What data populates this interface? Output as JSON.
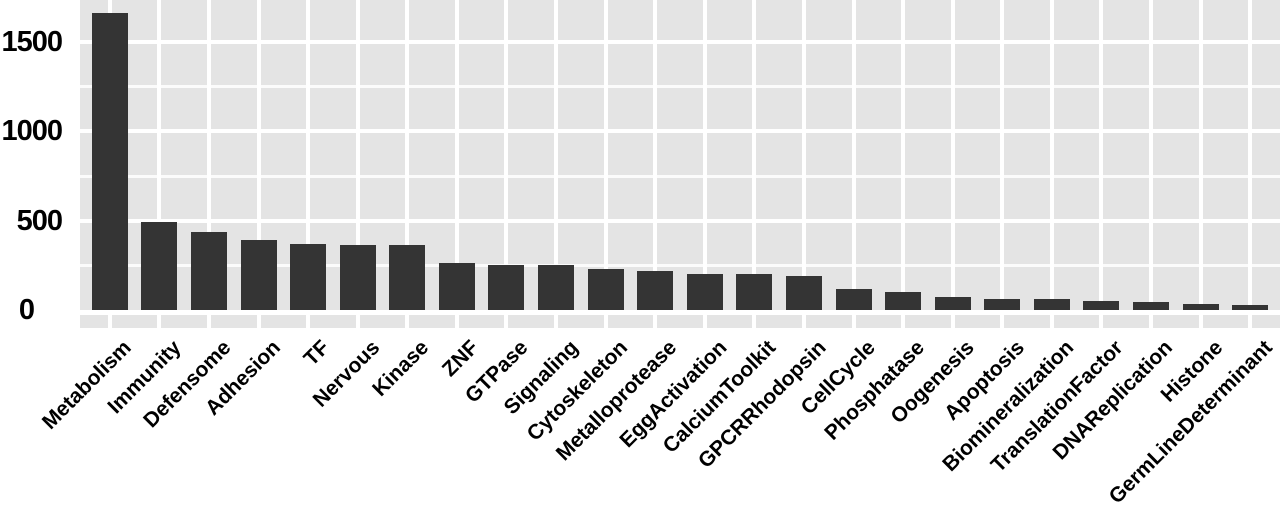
{
  "figure": {
    "title": "",
    "kind": "bar-chart"
  },
  "chart_data": {
    "type": "bar",
    "title": "",
    "xlabel": "",
    "ylabel": "",
    "categories": [
      "Metabolism",
      "Immunity",
      "Defensome",
      "Adhesion",
      "TF",
      "Nervous",
      "Kinase",
      "ZNF",
      "GTPase",
      "Signaling",
      "Cytoskeleton",
      "Metalloprotease",
      "EggActivation",
      "CalciumToolkit",
      "GPCRRhodopsin",
      "CellCycle",
      "Phosphatase",
      "Oogenesis",
      "Apoptosis",
      "Biomineralization",
      "TranslationFactor",
      "DNAReplication",
      "Histone",
      "GermLineDeterminant"
    ],
    "values": [
      1660,
      490,
      437,
      390,
      370,
      365,
      362,
      265,
      253,
      250,
      228,
      216,
      202,
      200,
      190,
      118,
      100,
      72,
      62,
      60,
      50,
      45,
      33,
      26
    ],
    "yticks_major": [
      1500,
      1000,
      500,
      0
    ],
    "yticks_minor": [
      1250,
      750,
      250
    ],
    "ylim": [
      0,
      1740
    ],
    "grid": true,
    "legend_position": "none",
    "x_tick_rotation_deg": 45,
    "bar_color": "#343434",
    "panel_background": "#e4e4e4",
    "gridline_color": "#ffffff",
    "text_color": "#000000"
  }
}
